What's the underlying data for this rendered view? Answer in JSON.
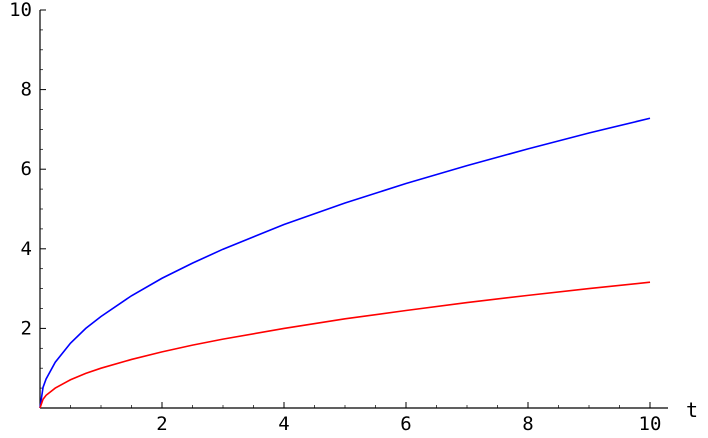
{
  "chart_data": {
    "type": "line",
    "title": "",
    "xlabel": "t",
    "ylabel": "",
    "xlim": [
      0,
      10
    ],
    "ylim": [
      0,
      10
    ],
    "x_ticks": [
      {
        "value": 2,
        "label": "2"
      },
      {
        "value": 4,
        "label": "4"
      },
      {
        "value": 6,
        "label": "6"
      },
      {
        "value": 8,
        "label": "8"
      },
      {
        "value": 10,
        "label": "10"
      }
    ],
    "y_ticks": [
      {
        "value": 2,
        "label": "2"
      },
      {
        "value": 4,
        "label": "4"
      },
      {
        "value": 6,
        "label": "6"
      },
      {
        "value": 8,
        "label": "8"
      },
      {
        "value": 10,
        "label": "10"
      }
    ],
    "grid": false,
    "series": [
      {
        "color": "#0000ff",
        "x": [
          0,
          0.05,
          0.1,
          0.25,
          0.5,
          0.75,
          1,
          1.5,
          2,
          2.5,
          3,
          4,
          5,
          6,
          7,
          8,
          9,
          10
        ],
        "y": [
          0,
          0.52,
          0.73,
          1.15,
          1.63,
          2.0,
          2.3,
          2.82,
          3.26,
          3.64,
          3.99,
          4.61,
          5.15,
          5.64,
          6.09,
          6.51,
          6.91,
          7.28
        ]
      },
      {
        "color": "#ff0000",
        "x": [
          0,
          0.05,
          0.1,
          0.25,
          0.5,
          0.75,
          1,
          1.5,
          2,
          2.5,
          3,
          4,
          5,
          6,
          7,
          8,
          9,
          10
        ],
        "y": [
          0,
          0.22,
          0.32,
          0.5,
          0.71,
          0.87,
          1.0,
          1.22,
          1.41,
          1.58,
          1.73,
          2.0,
          2.24,
          2.45,
          2.65,
          2.83,
          3.0,
          3.16
        ]
      }
    ]
  }
}
